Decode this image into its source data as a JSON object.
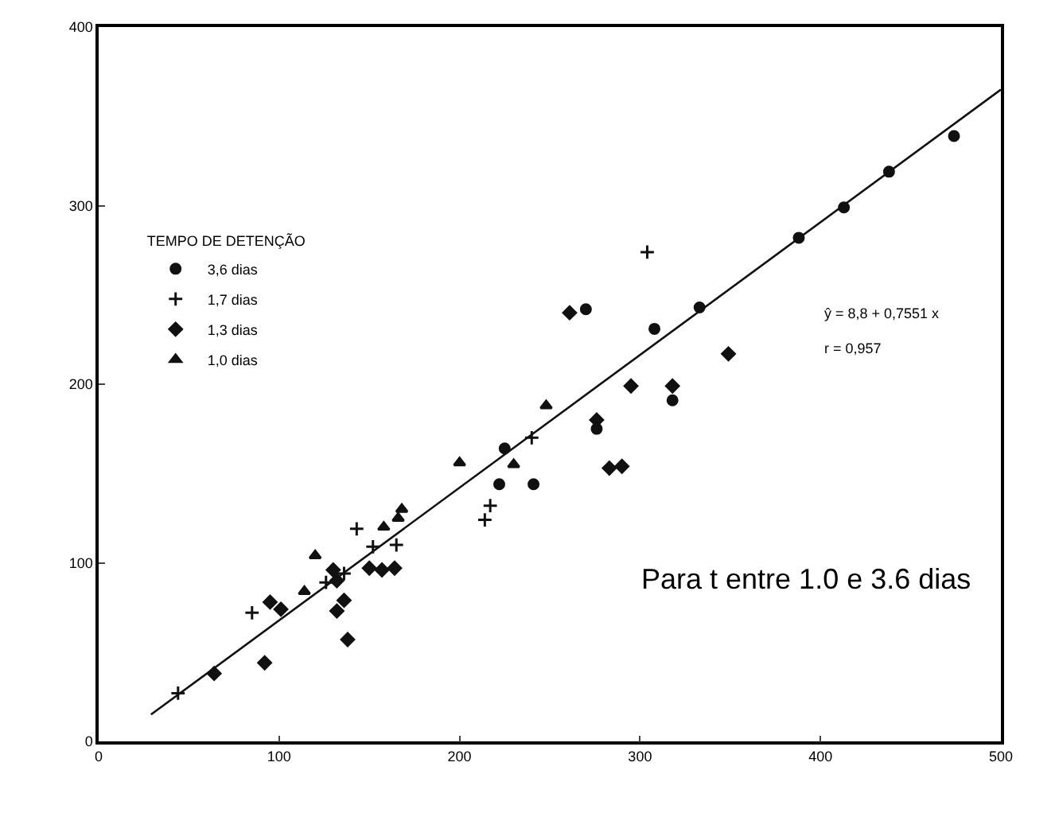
{
  "chart_data": {
    "type": "scatter",
    "legend_title": "TEMPO DE DETENÇÃO",
    "legend": "top left",
    "grid": false,
    "xlim": [
      0,
      500
    ],
    "xticks": [
      0,
      100,
      200,
      300,
      400,
      500
    ],
    "ylim": [
      0,
      400
    ],
    "yticks": [
      0,
      100,
      200,
      300,
      400
    ],
    "annotations": [
      "ŷ = 8,8 + 0,7551 x",
      "r = 0,957",
      "Para t entre 1.0 e 3.6 dias"
    ],
    "series": [
      {
        "name": "3,6 dias",
        "marker": "circle",
        "color": "#111111",
        "x": [
          225,
          270,
          276,
          308,
          318,
          333,
          388,
          413,
          438,
          474,
          241,
          222
        ],
        "values": [
          164,
          242,
          175,
          231,
          191,
          243,
          282,
          299,
          319,
          339,
          144,
          144
        ]
      },
      {
        "name": "1,7 dias",
        "marker": "cross",
        "color": "#111111",
        "x": [
          44,
          85,
          126,
          136,
          143,
          152,
          165,
          240,
          304,
          214,
          217
        ],
        "values": [
          27,
          72,
          89,
          94,
          119,
          109,
          110,
          170,
          274,
          124,
          132
        ]
      },
      {
        "name": "1,3 dias",
        "marker": "diamond",
        "color": "#111111",
        "x": [
          64,
          92,
          95,
          101,
          130,
          132,
          132,
          136,
          138,
          150,
          157,
          164,
          261,
          276,
          283,
          290,
          295,
          318,
          349
        ],
        "values": [
          38,
          44,
          78,
          74,
          96,
          90,
          73,
          79,
          57,
          97,
          96,
          97,
          240,
          180,
          153,
          154,
          199,
          199,
          217
        ]
      },
      {
        "name": "1,0 dias",
        "marker": "triangle",
        "color": "#111111",
        "x": [
          114,
          120,
          158,
          166,
          168,
          200,
          230,
          248
        ],
        "values": [
          84,
          104,
          120,
          125,
          130,
          156,
          155,
          188
        ]
      },
      {
        "type": "line",
        "color": "#111111",
        "line_style": "solid",
        "x": [
          29,
          500
        ],
        "values": [
          15,
          365
        ]
      }
    ]
  }
}
